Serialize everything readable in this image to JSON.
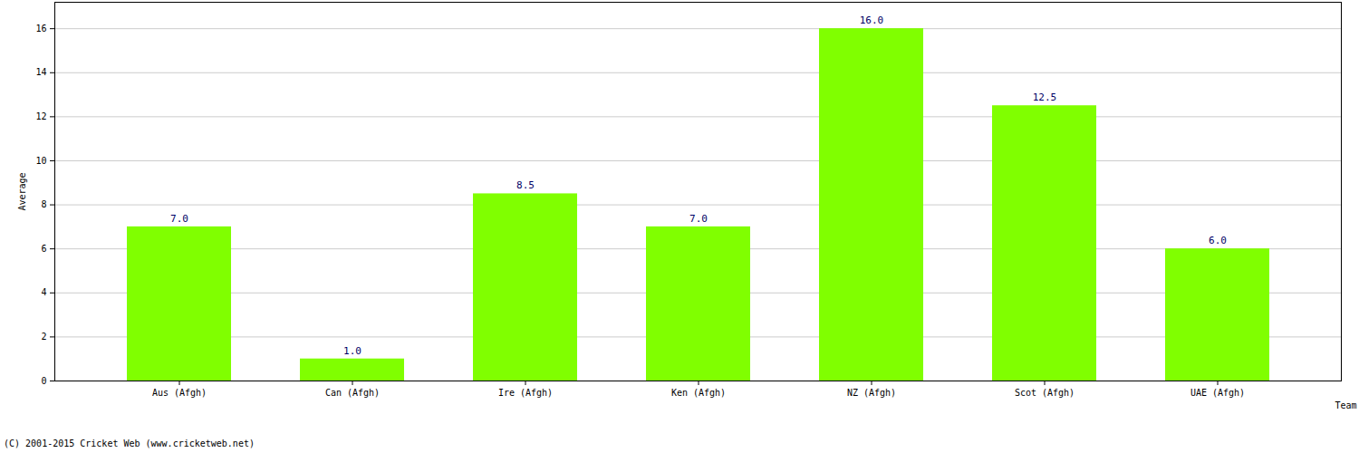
{
  "chart_data": {
    "type": "bar",
    "categories": [
      "Aus (Afgh)",
      "Can (Afgh)",
      "Ire (Afgh)",
      "Ken (Afgh)",
      "NZ (Afgh)",
      "Scot (Afgh)",
      "UAE (Afgh)"
    ],
    "values": [
      7,
      1,
      8.5,
      7,
      16,
      12.5,
      6
    ],
    "value_labels": [
      "7.0",
      "1.0",
      "8.5",
      "7.0",
      "16.0",
      "12.5",
      "6.0"
    ],
    "data_labels": true,
    "color": "#80ff00",
    "x_label": "Team",
    "y_label": "Average",
    "ylim": [
      0,
      17.2
    ],
    "yticks": [
      0,
      2,
      4,
      6,
      8,
      10,
      12,
      14,
      16
    ],
    "grid": true,
    "caption": "(C) 2001-2015 Cricket Web (www.cricketweb.net)"
  }
}
